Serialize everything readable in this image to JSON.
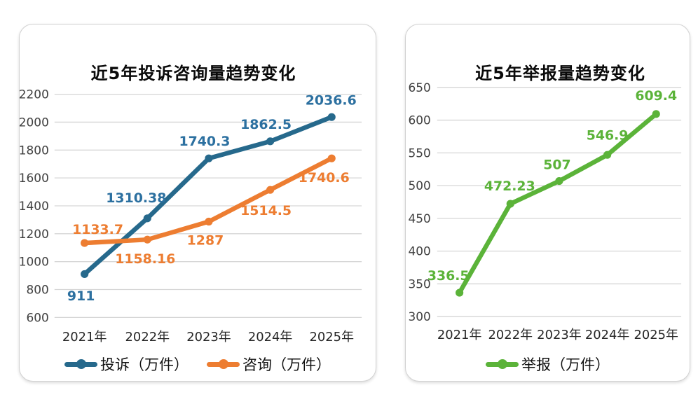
{
  "page": {
    "background": "#ffffff",
    "grid_color": "#d6d6d6",
    "tick_color": "#404040",
    "xlabel_color": "#262626"
  },
  "chart_data": [
    {
      "type": "line",
      "title": "近5年投诉咨询量趋势变化",
      "categories": [
        "2021年",
        "2022年",
        "2023年",
        "2024年",
        "2025年"
      ],
      "series": [
        {
          "name": "投诉（万件）",
          "color": "#26698C",
          "label_color": "#2C70A0",
          "values": [
            911,
            1310.38,
            1740.3,
            1862.5,
            2036.6
          ]
        },
        {
          "name": "咨询（万件）",
          "color": "#ED7D31",
          "label_color": "#ED7D31",
          "values": [
            1133.7,
            1158.16,
            1287,
            1514.5,
            1740.6
          ]
        }
      ],
      "ylim": [
        600,
        2200
      ],
      "yticks": [
        600,
        800,
        1000,
        1200,
        1400,
        1600,
        1800,
        2000,
        2200
      ],
      "grid": true,
      "legend_position": "bottom"
    },
    {
      "type": "line",
      "title": "近5年举报量趋势变化",
      "categories": [
        "2021年",
        "2022年",
        "2023年",
        "2024年",
        "2025年"
      ],
      "series": [
        {
          "name": "举报（万件）",
          "color": "#5BB339",
          "label_color": "#5BB339",
          "values": [
            336.5,
            472.23,
            507,
            546.9,
            609.4
          ]
        }
      ],
      "ylim": [
        300,
        650
      ],
      "yticks": [
        300,
        350,
        400,
        450,
        500,
        550,
        600,
        650
      ],
      "grid": true,
      "legend_position": "bottom"
    }
  ]
}
